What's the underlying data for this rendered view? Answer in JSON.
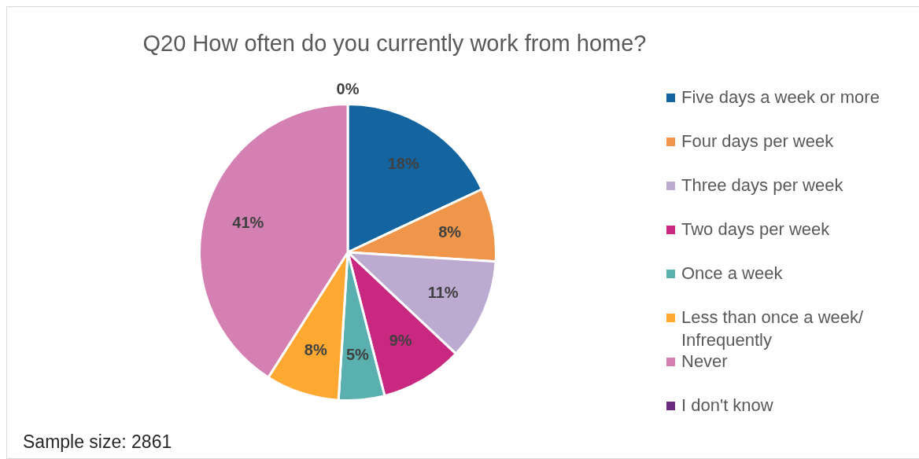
{
  "chart_data": {
    "type": "pie",
    "title": "Q20 How often do you currently work from home?",
    "categories": [
      "Five days a week or more",
      "Four days per week",
      "Three days per week",
      "Two days per week",
      "Once a week",
      "Less than once a week/ Infrequently",
      "Never",
      "I don't know"
    ],
    "values": [
      18,
      8,
      11,
      9,
      5,
      8,
      41,
      0
    ],
    "value_labels": [
      "18%",
      "8%",
      "11%",
      "9%",
      "5%",
      "8%",
      "41%",
      "0%"
    ],
    "colors": [
      "#1464a0",
      "#f0964a",
      "#bcaad0",
      "#c8287f",
      "#5aafaf",
      "#ffa832",
      "#d580b2",
      "#6a2a80"
    ],
    "legend": "right",
    "annotations": [
      "Sample size: 2861"
    ]
  }
}
